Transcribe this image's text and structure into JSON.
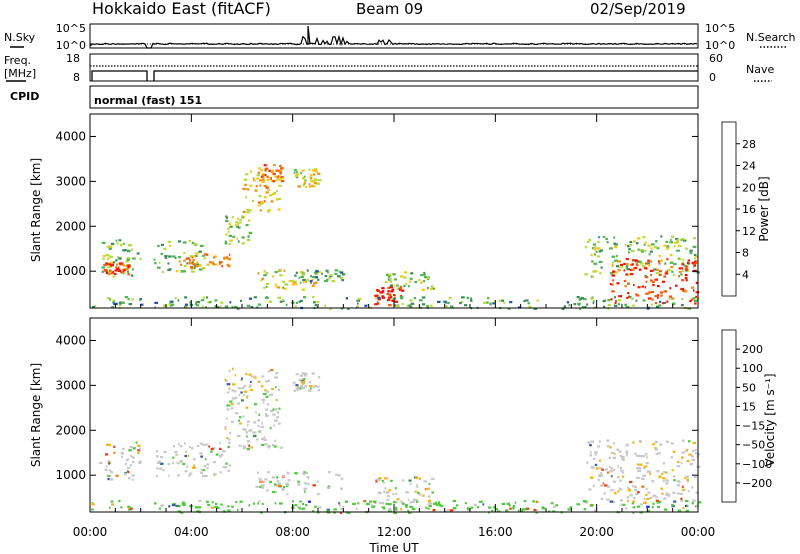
{
  "header": {
    "title": "Hokkaido East (fitACF)",
    "beam": "Beam 09",
    "date": "02/Sep/2019"
  },
  "strip_nsky": {
    "label": "N.Sky",
    "left_ticks": [
      "10^5",
      "10^0"
    ],
    "right_ticks": [
      "10^5",
      "10^0"
    ],
    "right_label": "N.Search"
  },
  "strip_freq": {
    "label_line1": "Freq.",
    "label_line2": "[MHz]",
    "left_ticks": [
      "18",
      "8"
    ],
    "right_ticks": [
      "60",
      "0"
    ],
    "right_label": "Nave"
  },
  "cpid": {
    "label": "CPID",
    "program": "normal (fast) 151"
  },
  "colors": {
    "power_scale": [
      "#0000ff",
      "#1e50b4",
      "#3c8c5a",
      "#50b450",
      "#b4dc3c",
      "#f0c81e",
      "#f08c14",
      "#f05a0a",
      "#f01e00",
      "#ff0000"
    ],
    "velocity_scale": [
      "#ff0000",
      "#f03c0a",
      "#f07814",
      "#f0b41e",
      "#c8c8c8",
      "#50c83c",
      "#3c8c50",
      "#3c5aa0",
      "#1e28c8"
    ]
  },
  "chart_data": [
    {
      "type": "heatmap",
      "name": "power",
      "ylabel": "Slant Range [km]",
      "y_ticks": [
        "1000",
        "2000",
        "3000",
        "4000"
      ],
      "ylim": [
        180,
        4500
      ],
      "xlim_hours": [
        0,
        24
      ],
      "colorbar": {
        "label": "Power [dB]",
        "tick_labels": [
          "4",
          "8",
          "12",
          "16",
          "20",
          "24",
          "28"
        ],
        "range": [
          0,
          32
        ]
      },
      "scatter_regions": [
        {
          "t0": 0.3,
          "t1": 2.0,
          "r0": 900,
          "r1": 1750,
          "value": 12
        },
        {
          "t0": 0.5,
          "t1": 1.5,
          "r0": 950,
          "r1": 1200,
          "value": 24
        },
        {
          "t0": 2.5,
          "t1": 4.5,
          "r0": 1000,
          "r1": 1750,
          "value": 12
        },
        {
          "t0": 3.5,
          "t1": 5.5,
          "r0": 1100,
          "r1": 1400,
          "value": 20
        },
        {
          "t0": 5.3,
          "t1": 6.3,
          "r0": 1600,
          "r1": 2300,
          "value": 14
        },
        {
          "t0": 6.0,
          "t1": 7.5,
          "r0": 2300,
          "r1": 3300,
          "value": 18
        },
        {
          "t0": 6.6,
          "t1": 7.6,
          "r0": 3000,
          "r1": 3400,
          "value": 22
        },
        {
          "t0": 8.0,
          "t1": 9.0,
          "r0": 2900,
          "r1": 3300,
          "value": 16
        },
        {
          "t0": 6.5,
          "t1": 9.0,
          "r0": 600,
          "r1": 1100,
          "value": 16
        },
        {
          "t0": 8.0,
          "t1": 10.0,
          "r0": 800,
          "r1": 1050,
          "value": 10
        },
        {
          "t0": 11.2,
          "t1": 12.3,
          "r0": 250,
          "r1": 700,
          "value": 28
        },
        {
          "t0": 11.5,
          "t1": 13.5,
          "r0": 600,
          "r1": 1000,
          "value": 14
        },
        {
          "t0": 19.5,
          "t1": 24.0,
          "r0": 900,
          "r1": 1800,
          "value": 12
        },
        {
          "t0": 20.5,
          "t1": 24.0,
          "r0": 300,
          "r1": 1300,
          "value": 26
        },
        {
          "t0": 0.0,
          "t1": 24.0,
          "r0": 180,
          "r1": 450,
          "value": 10
        }
      ]
    },
    {
      "type": "heatmap",
      "name": "velocity",
      "ylabel": "Slant Range [km]",
      "y_ticks": [
        "1000",
        "2000",
        "3000",
        "4000"
      ],
      "ylim": [
        180,
        4500
      ],
      "xlim_hours": [
        0,
        24
      ],
      "xlabel": "Time UT",
      "x_ticks": [
        "00:00",
        "04:00",
        "08:00",
        "12:00",
        "16:00",
        "20:00",
        "00:00"
      ],
      "colorbar": {
        "label": "Velocity [m s⁻¹]",
        "tick_labels": [
          "200",
          "100",
          "50",
          "15",
          "−15",
          "−50",
          "−100",
          "−200"
        ],
        "range": [
          -250,
          250
        ]
      },
      "scatter_regions": [
        {
          "t0": 0.3,
          "t1": 2.0,
          "r0": 900,
          "r1": 1750,
          "value": 0
        },
        {
          "t0": 2.5,
          "t1": 5.5,
          "r0": 1000,
          "r1": 1750,
          "value": 0
        },
        {
          "t0": 5.3,
          "t1": 7.5,
          "r0": 1600,
          "r1": 3400,
          "value": 0
        },
        {
          "t0": 8.0,
          "t1": 9.0,
          "r0": 2900,
          "r1": 3300,
          "value": 0
        },
        {
          "t0": 6.5,
          "t1": 10.0,
          "r0": 600,
          "r1": 1100,
          "value": 5
        },
        {
          "t0": 11.2,
          "t1": 13.5,
          "r0": 250,
          "r1": 1000,
          "value": 0
        },
        {
          "t0": 19.5,
          "t1": 24.0,
          "r0": 400,
          "r1": 1800,
          "value": -5
        },
        {
          "t0": 0.0,
          "t1": 24.0,
          "r0": 180,
          "r1": 450,
          "value": 30
        }
      ]
    }
  ]
}
